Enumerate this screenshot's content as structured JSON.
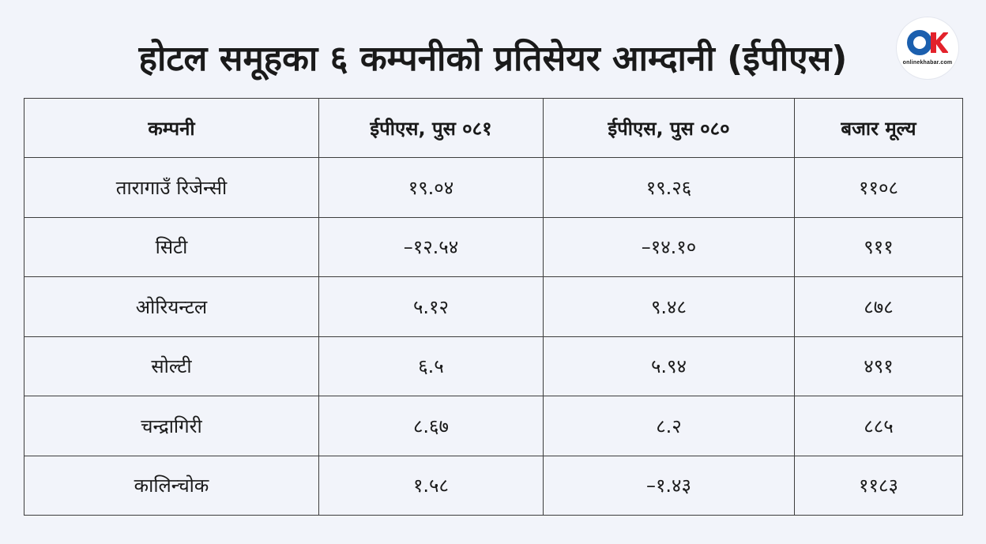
{
  "title": "होटल समूहका ६ कम्पनीको प्रतिसेयर आम्दानी (ईपीएस)",
  "logo": {
    "icon": "onlinekhabar-logo-icon",
    "tagline": "onlinekhabar.com",
    "colors": {
      "circle": "#1b5fae",
      "k": "#e3222b"
    }
  },
  "table": {
    "headers": [
      "कम्पनी",
      "ईपीएस, पुस ०८१",
      "ईपीएस, पुस ०८०",
      "बजार मूल्य"
    ],
    "rows": [
      [
        "तारागाउँ रिजेन्सी",
        "१९.०४",
        "१९.२६",
        "११०८"
      ],
      [
        "सिटी",
        "–१२.५४",
        "–१४.१०",
        "९११"
      ],
      [
        "ओरियन्टल",
        "५.१२",
        "९.४८",
        "८७८"
      ],
      [
        "सोल्टी",
        "६.५",
        "५.९४",
        "४९१"
      ],
      [
        "चन्द्रागिरी",
        "८.६७",
        "८.२",
        "८८५"
      ],
      [
        "कालिन्चोक",
        "१.५८",
        "–१.४३",
        "११८३"
      ]
    ]
  }
}
